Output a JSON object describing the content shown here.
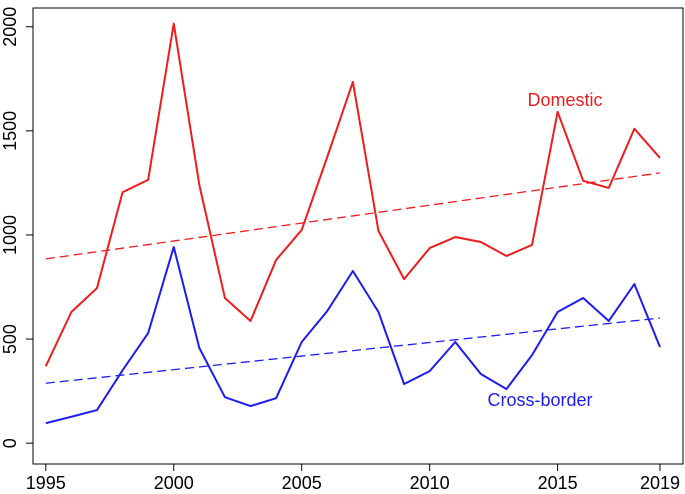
{
  "chart_data": {
    "type": "line",
    "x": [
      1995,
      1996,
      1997,
      1998,
      1999,
      2000,
      2001,
      2002,
      2003,
      2004,
      2005,
      2006,
      2007,
      2008,
      2009,
      2010,
      2011,
      2012,
      2013,
      2014,
      2015,
      2016,
      2017,
      2018,
      2019
    ],
    "series": [
      {
        "name": "Domestic",
        "color": "#ee1c1c",
        "values": [
          370,
          630,
          745,
          1205,
          1265,
          2015,
          1240,
          697,
          587,
          880,
          1024,
          1375,
          1735,
          1019,
          788,
          937,
          990,
          966,
          899,
          952,
          1591,
          1260,
          1226,
          1510,
          1370
        ],
        "trend": {
          "x": [
            1995,
            2019
          ],
          "values": [
            885,
            1298
          ]
        }
      },
      {
        "name": "Cross-border",
        "color": "#1c1cee",
        "values": [
          96,
          127,
          159,
          350,
          529,
          942,
          457,
          221,
          178,
          216,
          486,
          635,
          827,
          630,
          284,
          346,
          486,
          332,
          260,
          423,
          630,
          697,
          587,
          764,
          462
        ],
        "trend": {
          "x": [
            1995,
            2019
          ],
          "values": [
            288,
            601
          ]
        }
      }
    ],
    "xlim": [
      1994.5,
      2019.9
    ],
    "ylim": [
      -100,
      2090
    ],
    "xticks": [
      1995,
      2000,
      2005,
      2010,
      2015,
      2019
    ],
    "yticks": [
      0,
      500,
      1000,
      1500,
      2000
    ]
  }
}
